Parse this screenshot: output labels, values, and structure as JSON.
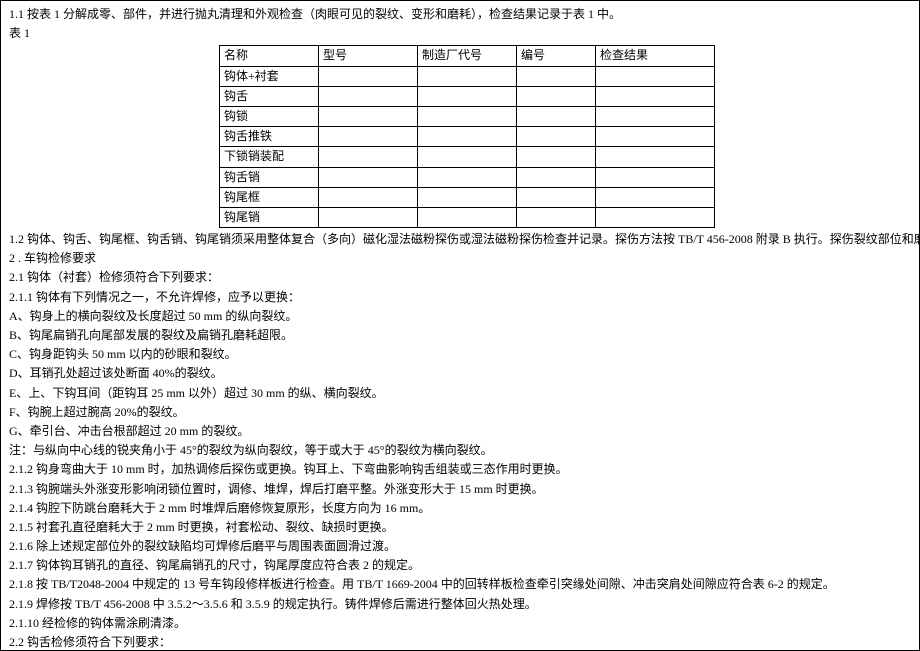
{
  "intro": "1.1 按表 1 分解成零、部件，并进行抛丸清理和外观检查（肉眼可见的裂纹、变形和磨耗），检查结果记录于表 1 中。",
  "table_label": "表 1",
  "table": {
    "headers": [
      "名称",
      "型号",
      "制造厂代号",
      "编号",
      "检查结果"
    ],
    "rows": [
      [
        "钩体+衬套",
        "",
        "",
        "",
        ""
      ],
      [
        "钩舌",
        "",
        "",
        "",
        ""
      ],
      [
        "钩锁",
        "",
        "",
        "",
        ""
      ],
      [
        "钩舌推铁",
        "",
        "",
        "",
        ""
      ],
      [
        "下锁销装配",
        "",
        "",
        "",
        ""
      ],
      [
        "钩舌销",
        "",
        "",
        "",
        ""
      ],
      [
        "钩尾框",
        "",
        "",
        "",
        ""
      ],
      [
        "钩尾销",
        "",
        "",
        "",
        ""
      ]
    ]
  },
  "para_1_2": "1.2 钩体、钩舌、钩尾框、钩舌销、钩尾销须采用整体复合（多向）磁化湿法磁粉探伤或湿法磁粉探伤检查并记录。探伤方法按 TB/T 456-2008 附录 B 执行。探伤裂纹部位和磨损部位焊修后须复探。",
  "para_2": "2 . 车钩检修要求",
  "para_2_1": "2.1 钩体（衬套）检修须符合下列要求：",
  "para_2_1_1": "2.1.1 钩体有下列情况之一，不允许焊修，应予以更换：",
  "li_A": "A、钩身上的横向裂纹及长度超过 50 mm 的纵向裂纹。",
  "li_B": "B、钩尾扁销孔向尾部发展的裂纹及扁销孔磨耗超限。",
  "li_C": "C、钩身距钩头 50 mm 以内的砂眼和裂纹。",
  "li_D": "D、耳销孔处超过该处断面 40%的裂纹。",
  "li_E": "E、上、下钩耳间（距钩耳 25 mm 以外）超过 30 mm 的纵、横向裂纹。",
  "li_F": "F、钩腕上超过腕高 20%的裂纹。",
  "li_G": "G、牵引台、冲击台根部超过 20 mm 的裂纹。",
  "note": "注：与纵向中心线的锐夹角小于 45°的裂纹为纵向裂纹，等于或大于 45°的裂纹为横向裂纹。",
  "p_2_1_2": "2.1.2 钩身弯曲大于 10 mm 时，加热调修后探伤或更换。钩耳上、下弯曲影响钩舌组装或三态作用时更换。",
  "p_2_1_3": "2.1.3 钩腕端头外涨变形影响闭锁位置时，调修、堆焊，焊后打磨平整。外涨变形大于 15 mm 时更换。",
  "p_2_1_4": "2.1.4 钩腔下防跳台磨耗大于 2 mm 时堆焊后磨修恢复原形，长度方向为 16 mm。",
  "p_2_1_5": "2.1.5 衬套孔直径磨耗大于 2 mm 时更换，衬套松动、裂纹、缺损时更换。",
  "p_2_1_6": "2.1.6 除上述规定部位外的裂纹缺陷均可焊修后磨平与周围表面圆滑过渡。",
  "p_2_1_7": "2.1.7 钩体钩耳销孔的直径、钩尾扁销孔的尺寸，钩尾厚度应符合表 2 的规定。",
  "p_2_1_8": "2.1.8 按 TB/T2048-2004 中规定的 13 号车钩段修样板进行检查。用 TB/T 1669-2004 中的回转样板检查牵引突缘处间隙、冲击突肩处间隙应符合表 6-2 的规定。",
  "p_2_1_9": "2.1.9 焊修按 TB/T 456-2008 中 3.5.2～3.5.6 和 3.5.9 的规定执行。铸件焊修后需进行整体回火热处理。",
  "p_2_1_10": "2.1.10 经检修的钩体需涂刷清漆。",
  "p_2_2": "2.2 钩舌检修须符合下列要求："
}
